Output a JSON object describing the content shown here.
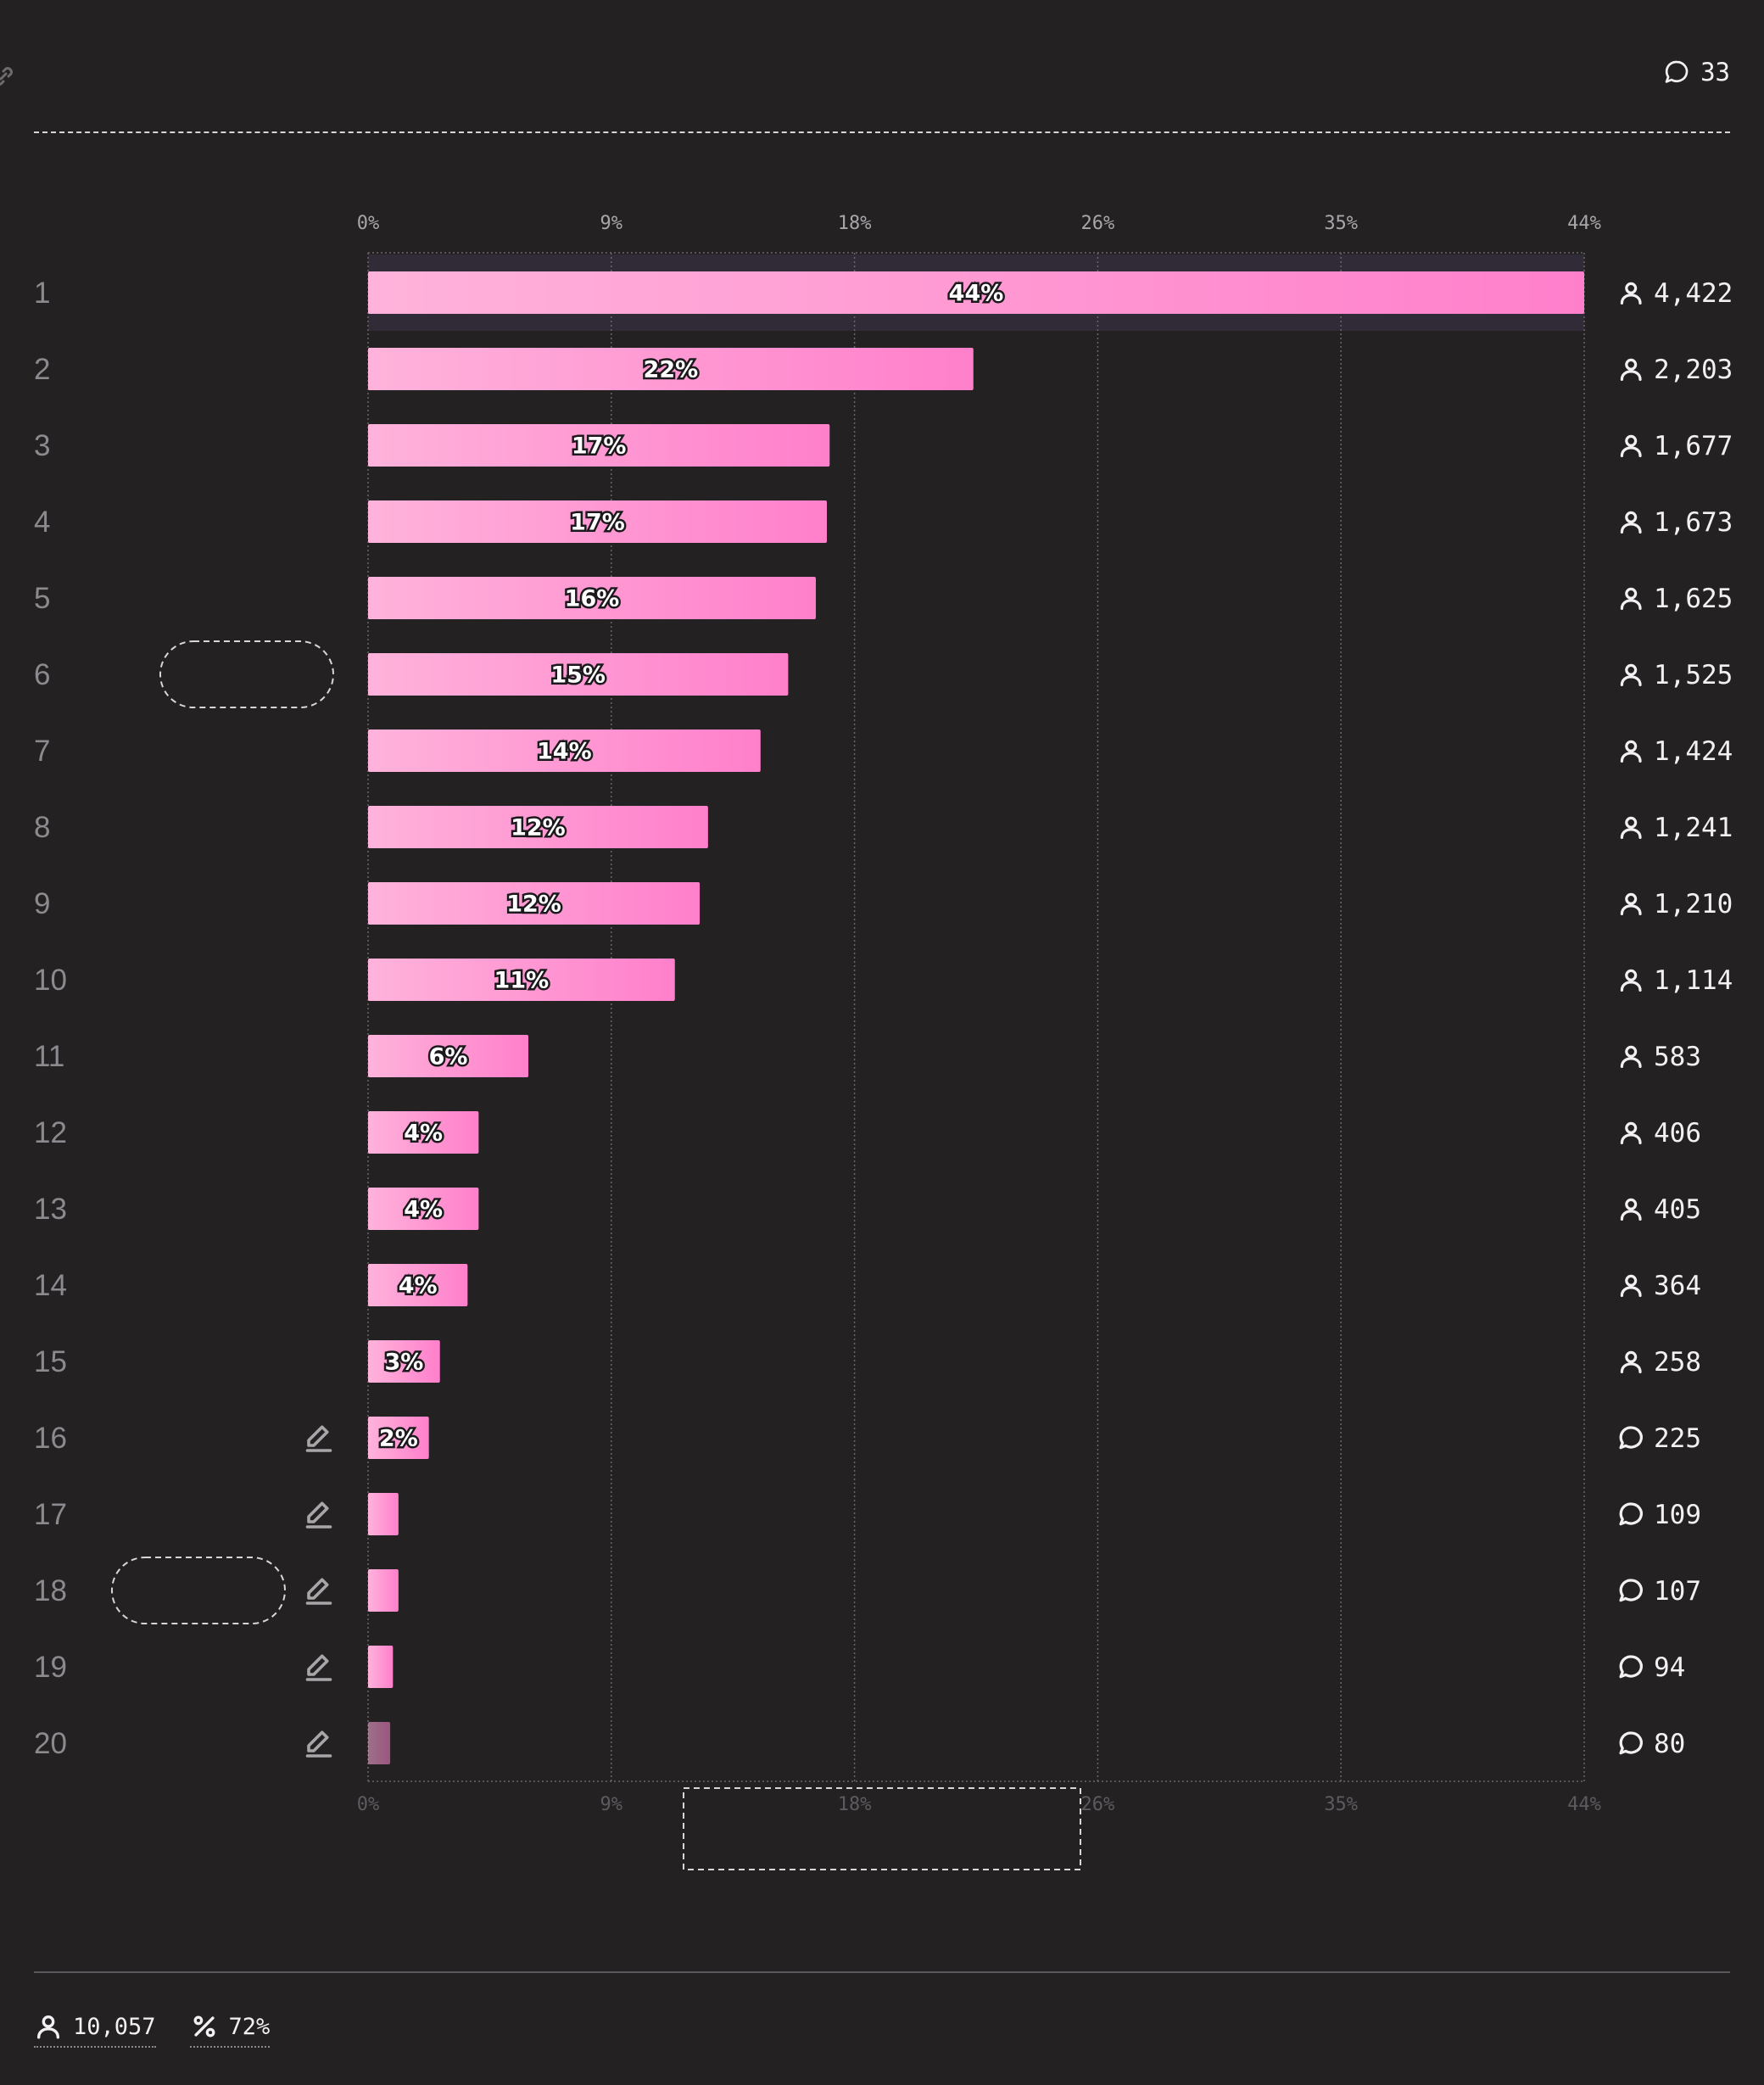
{
  "header": {
    "comment_count": "33",
    "comment_icon": "speech-bubble-icon",
    "link_icon": "link-icon"
  },
  "chart_data": {
    "type": "bar",
    "orientation": "horizontal",
    "x_ticks": [
      "0%",
      "9%",
      "18%",
      "26%",
      "35%",
      "44%"
    ],
    "xlim": [
      0,
      44
    ],
    "bar_color_start": "#ffb3db",
    "bar_color_end": "#ff7fcb",
    "rows": [
      {
        "rank": "1",
        "value": 44,
        "label": "44%",
        "count": "4,422",
        "icon": "user"
      },
      {
        "rank": "2",
        "value": 21.9,
        "label": "22%",
        "count": "2,203",
        "icon": "user"
      },
      {
        "rank": "3",
        "value": 16.7,
        "label": "17%",
        "count": "1,677",
        "icon": "user"
      },
      {
        "rank": "4",
        "value": 16.6,
        "label": "17%",
        "count": "1,673",
        "icon": "user"
      },
      {
        "rank": "5",
        "value": 16.2,
        "label": "16%",
        "count": "1,625",
        "icon": "user"
      },
      {
        "rank": "6",
        "value": 15.2,
        "label": "15%",
        "count": "1,525",
        "icon": "user"
      },
      {
        "rank": "7",
        "value": 14.2,
        "label": "14%",
        "count": "1,424",
        "icon": "user"
      },
      {
        "rank": "8",
        "value": 12.3,
        "label": "12%",
        "count": "1,241",
        "icon": "user"
      },
      {
        "rank": "9",
        "value": 12.0,
        "label": "12%",
        "count": "1,210",
        "icon": "user"
      },
      {
        "rank": "10",
        "value": 11.1,
        "label": "11%",
        "count": "1,114",
        "icon": "user"
      },
      {
        "rank": "11",
        "value": 5.8,
        "label": "6%",
        "count": "583",
        "icon": "user"
      },
      {
        "rank": "12",
        "value": 4.0,
        "label": "4%",
        "count": "406",
        "icon": "user"
      },
      {
        "rank": "13",
        "value": 4.0,
        "label": "4%",
        "count": "405",
        "icon": "user"
      },
      {
        "rank": "14",
        "value": 3.6,
        "label": "4%",
        "count": "364",
        "icon": "user"
      },
      {
        "rank": "15",
        "value": 2.6,
        "label": "3%",
        "count": "258",
        "icon": "user"
      },
      {
        "rank": "16",
        "value": 2.2,
        "label": "2%",
        "count": "225",
        "icon": "comment",
        "editable": true
      },
      {
        "rank": "17",
        "value": 1.1,
        "label": "",
        "count": "109",
        "icon": "comment",
        "editable": true
      },
      {
        "rank": "18",
        "value": 1.1,
        "label": "",
        "count": "107",
        "icon": "comment",
        "editable": true
      },
      {
        "rank": "19",
        "value": 0.9,
        "label": "",
        "count": "94",
        "icon": "comment",
        "editable": true
      },
      {
        "rank": "20",
        "value": 0.8,
        "label": "",
        "count": "80",
        "icon": "comment",
        "editable": true,
        "faded": true
      }
    ]
  },
  "footer": {
    "participants": "10,057",
    "participants_icon": "user-icon",
    "percentage": "72%",
    "percentage_icon": "percent-icon"
  }
}
